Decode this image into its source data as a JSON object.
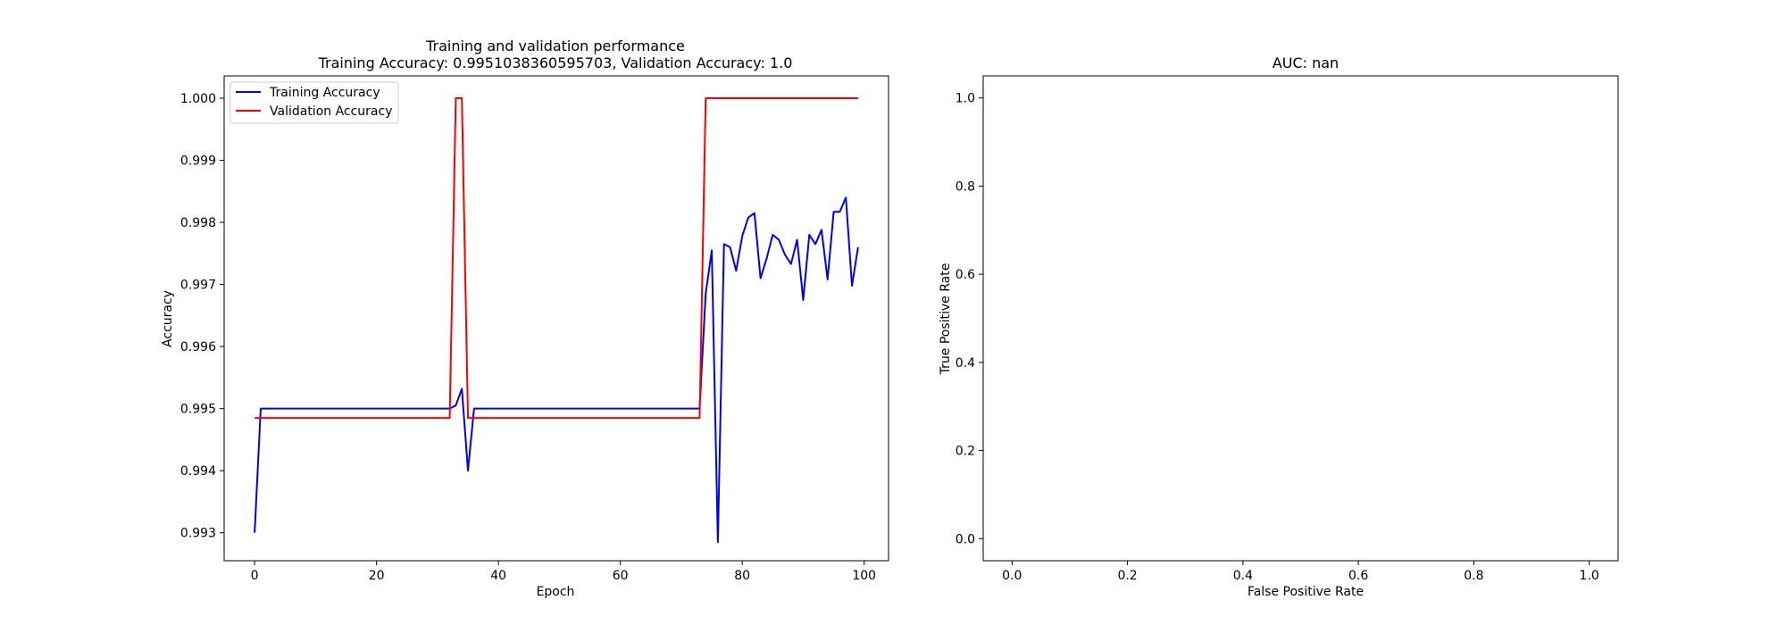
{
  "chart_data": [
    {
      "type": "line",
      "title": "Training and validation performance",
      "subtitle": "Training Accuracy: 0.9951038360595703, Validation Accuracy: 1.0",
      "xlabel": "Epoch",
      "ylabel": "Accuracy",
      "xlim": [
        -5,
        104
      ],
      "ylim": [
        0.99255,
        1.00036
      ],
      "xticks": [
        0,
        20,
        40,
        60,
        80,
        100
      ],
      "xtick_labels": [
        "0",
        "20",
        "40",
        "60",
        "80",
        "100"
      ],
      "yticks": [
        0.993,
        0.994,
        0.995,
        0.996,
        0.997,
        0.998,
        0.999,
        1.0
      ],
      "ytick_labels": [
        "0.993",
        "0.994",
        "0.995",
        "0.996",
        "0.997",
        "0.998",
        "0.999",
        "1.000"
      ],
      "grid": false,
      "legend_position": "top-left",
      "series": [
        {
          "name": "Training Accuracy",
          "color": "#0000ff",
          "x": [
            0,
            1,
            2,
            3,
            4,
            5,
            6,
            7,
            8,
            9,
            10,
            11,
            12,
            13,
            14,
            15,
            16,
            17,
            18,
            19,
            20,
            21,
            22,
            23,
            24,
            25,
            26,
            27,
            28,
            29,
            30,
            31,
            32,
            33,
            34,
            35,
            36,
            37,
            38,
            39,
            40,
            41,
            42,
            43,
            44,
            45,
            46,
            47,
            48,
            49,
            50,
            51,
            52,
            53,
            54,
            55,
            56,
            57,
            58,
            59,
            60,
            61,
            62,
            63,
            64,
            65,
            66,
            67,
            68,
            69,
            70,
            71,
            72,
            73,
            74,
            75,
            76,
            77,
            78,
            79,
            80,
            81,
            82,
            83,
            84,
            85,
            86,
            87,
            88,
            89,
            90,
            91,
            92,
            93,
            94,
            95,
            96,
            97,
            98,
            99
          ],
          "values": [
            0.993,
            0.995,
            0.995,
            0.995,
            0.995,
            0.995,
            0.995,
            0.995,
            0.995,
            0.995,
            0.995,
            0.995,
            0.995,
            0.995,
            0.995,
            0.995,
            0.995,
            0.995,
            0.995,
            0.995,
            0.995,
            0.995,
            0.995,
            0.995,
            0.995,
            0.995,
            0.995,
            0.995,
            0.995,
            0.995,
            0.995,
            0.995,
            0.995,
            0.99505,
            0.99532,
            0.994,
            0.995,
            0.995,
            0.995,
            0.995,
            0.995,
            0.995,
            0.995,
            0.995,
            0.995,
            0.995,
            0.995,
            0.995,
            0.995,
            0.995,
            0.995,
            0.995,
            0.995,
            0.995,
            0.995,
            0.995,
            0.995,
            0.995,
            0.995,
            0.995,
            0.995,
            0.995,
            0.995,
            0.995,
            0.995,
            0.995,
            0.995,
            0.995,
            0.995,
            0.995,
            0.995,
            0.995,
            0.995,
            0.995,
            0.99685,
            0.99755,
            0.99285,
            0.99765,
            0.9976,
            0.99722,
            0.99778,
            0.99808,
            0.99815,
            0.9971,
            0.99742,
            0.9978,
            0.99772,
            0.99748,
            0.99733,
            0.99772,
            0.99675,
            0.9978,
            0.99765,
            0.99788,
            0.99708,
            0.99817,
            0.99817,
            0.9984,
            0.99698,
            0.9976
          ]
        },
        {
          "name": "Validation Accuracy",
          "color": "#ff0000",
          "x": [
            0,
            1,
            2,
            3,
            4,
            5,
            6,
            7,
            8,
            9,
            10,
            11,
            12,
            13,
            14,
            15,
            16,
            17,
            18,
            19,
            20,
            21,
            22,
            23,
            24,
            25,
            26,
            27,
            28,
            29,
            30,
            31,
            32,
            33,
            34,
            35,
            36,
            37,
            38,
            39,
            40,
            41,
            42,
            43,
            44,
            45,
            46,
            47,
            48,
            49,
            50,
            51,
            52,
            53,
            54,
            55,
            56,
            57,
            58,
            59,
            60,
            61,
            62,
            63,
            64,
            65,
            66,
            67,
            68,
            69,
            70,
            71,
            72,
            73,
            74,
            75,
            76,
            77,
            78,
            79,
            80,
            81,
            82,
            83,
            84,
            85,
            86,
            87,
            88,
            89,
            90,
            91,
            92,
            93,
            94,
            95,
            96,
            97,
            98,
            99
          ],
          "values": [
            0.99485,
            0.99485,
            0.99485,
            0.99485,
            0.99485,
            0.99485,
            0.99485,
            0.99485,
            0.99485,
            0.99485,
            0.99485,
            0.99485,
            0.99485,
            0.99485,
            0.99485,
            0.99485,
            0.99485,
            0.99485,
            0.99485,
            0.99485,
            0.99485,
            0.99485,
            0.99485,
            0.99485,
            0.99485,
            0.99485,
            0.99485,
            0.99485,
            0.99485,
            0.99485,
            0.99485,
            0.99485,
            0.99485,
            1.0,
            1.0,
            0.99485,
            0.99485,
            0.99485,
            0.99485,
            0.99485,
            0.99485,
            0.99485,
            0.99485,
            0.99485,
            0.99485,
            0.99485,
            0.99485,
            0.99485,
            0.99485,
            0.99485,
            0.99485,
            0.99485,
            0.99485,
            0.99485,
            0.99485,
            0.99485,
            0.99485,
            0.99485,
            0.99485,
            0.99485,
            0.99485,
            0.99485,
            0.99485,
            0.99485,
            0.99485,
            0.99485,
            0.99485,
            0.99485,
            0.99485,
            0.99485,
            0.99485,
            0.99485,
            0.99485,
            0.99485,
            1.0,
            1.0,
            1.0,
            1.0,
            1.0,
            1.0,
            1.0,
            1.0,
            1.0,
            1.0,
            1.0,
            1.0,
            1.0,
            1.0,
            1.0,
            1.0,
            1.0,
            1.0,
            1.0,
            1.0,
            1.0,
            1.0,
            1.0,
            1.0,
            1.0,
            1.0
          ]
        }
      ]
    },
    {
      "type": "line",
      "title": "AUC: nan",
      "xlabel": "False Positive Rate",
      "ylabel": "True Positive Rate",
      "xlim": [
        -0.05,
        1.05
      ],
      "ylim": [
        -0.05,
        1.05
      ],
      "xticks": [
        0.0,
        0.2,
        0.4,
        0.6,
        0.8,
        1.0
      ],
      "xtick_labels": [
        "0.0",
        "0.2",
        "0.4",
        "0.6",
        "0.8",
        "1.0"
      ],
      "yticks": [
        0.0,
        0.2,
        0.4,
        0.6,
        0.8,
        1.0
      ],
      "ytick_labels": [
        "0.0",
        "0.2",
        "0.4",
        "0.6",
        "0.8",
        "1.0"
      ],
      "grid": false,
      "series": []
    }
  ]
}
